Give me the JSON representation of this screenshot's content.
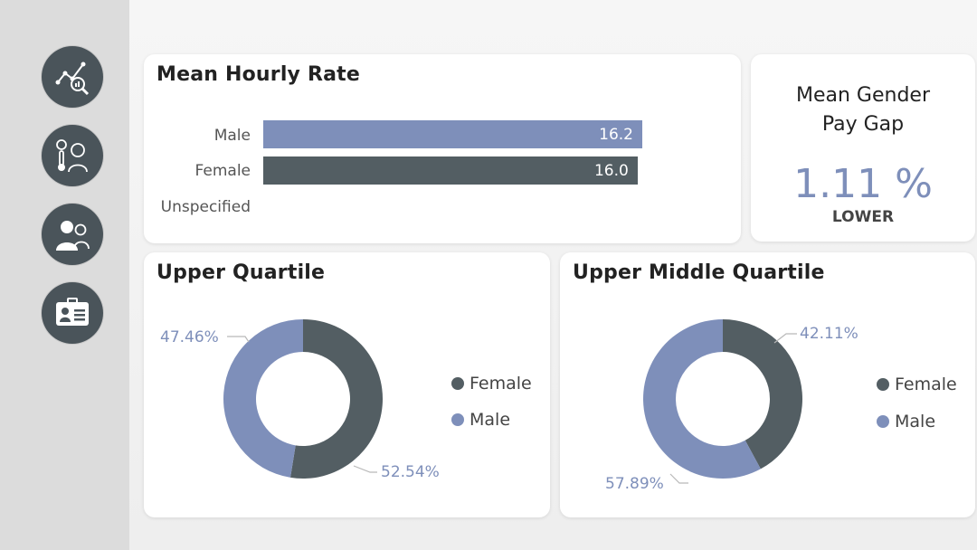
{
  "nav": {
    "items": [
      {
        "name": "analytics-icon"
      },
      {
        "name": "health-thermometer-icon"
      },
      {
        "name": "people-icon"
      },
      {
        "name": "id-card-icon"
      }
    ]
  },
  "mean_hourly_rate": {
    "title": "Mean Hourly Rate",
    "labels": [
      "Male",
      "Female",
      "Unspecified"
    ],
    "chart_data": {
      "type": "bar",
      "categories": [
        "Male",
        "Female",
        "Unspecified"
      ],
      "values": [
        16.2,
        16.0,
        null
      ],
      "value_labels": [
        "16.2",
        "16.0",
        ""
      ],
      "colors": [
        "#7e8fba",
        "#535e63"
      ]
    }
  },
  "gender_pay_gap": {
    "title_line1": "Mean Gender",
    "title_line2": "Pay Gap",
    "value": "1.11 %",
    "sub": "LOWER"
  },
  "upper_quartile": {
    "title": "Upper Quartile",
    "chart_data": {
      "type": "pie",
      "categories": [
        "Female",
        "Male"
      ],
      "values": [
        52.54,
        47.46
      ],
      "labels": [
        "52.54%",
        "47.46%"
      ],
      "colors": [
        "#535e63",
        "#7e8fba"
      ]
    },
    "legend": [
      "Female",
      "Male"
    ]
  },
  "upper_middle_quartile": {
    "title": "Upper Middle Quartile",
    "chart_data": {
      "type": "pie",
      "categories": [
        "Female",
        "Male"
      ],
      "values": [
        42.11,
        57.89
      ],
      "labels": [
        "42.11%",
        "57.89%"
      ],
      "colors": [
        "#535e63",
        "#7e8fba"
      ]
    },
    "legend": [
      "Female",
      "Male"
    ]
  }
}
